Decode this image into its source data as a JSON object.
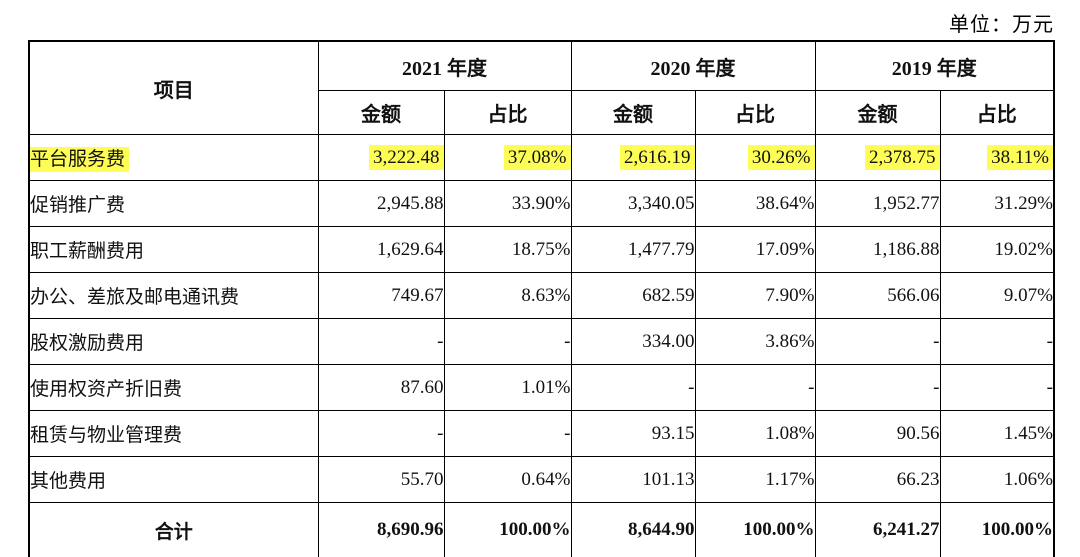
{
  "unit_label": "单位：万元",
  "table": {
    "item_header": "项目",
    "year_groups": [
      {
        "label": "2021 年度"
      },
      {
        "label": "2020 年度"
      },
      {
        "label": "2019 年度"
      }
    ],
    "sub_headers": {
      "amount": "金额",
      "ratio": "占比"
    },
    "rows": [
      {
        "item": "平台服务费",
        "highlight": true,
        "values": [
          "3,222.48",
          "37.08%",
          "2,616.19",
          "30.26%",
          "2,378.75",
          "38.11%"
        ]
      },
      {
        "item": "促销推广费",
        "highlight": false,
        "values": [
          "2,945.88",
          "33.90%",
          "3,340.05",
          "38.64%",
          "1,952.77",
          "31.29%"
        ]
      },
      {
        "item": "职工薪酬费用",
        "highlight": false,
        "values": [
          "1,629.64",
          "18.75%",
          "1,477.79",
          "17.09%",
          "1,186.88",
          "19.02%"
        ]
      },
      {
        "item": "办公、差旅及邮电通讯费",
        "highlight": false,
        "values": [
          "749.67",
          "8.63%",
          "682.59",
          "7.90%",
          "566.06",
          "9.07%"
        ]
      },
      {
        "item": "股权激励费用",
        "highlight": false,
        "values": [
          "-",
          "-",
          "334.00",
          "3.86%",
          "-",
          "-"
        ]
      },
      {
        "item": "使用权资产折旧费",
        "highlight": false,
        "values": [
          "87.60",
          "1.01%",
          "-",
          "-",
          "-",
          "-"
        ]
      },
      {
        "item": "租赁与物业管理费",
        "highlight": false,
        "values": [
          "-",
          "-",
          "93.15",
          "1.08%",
          "90.56",
          "1.45%"
        ]
      },
      {
        "item": "其他费用",
        "highlight": false,
        "values": [
          "55.70",
          "0.64%",
          "101.13",
          "1.17%",
          "66.23",
          "1.06%"
        ]
      }
    ],
    "total_row": {
      "item": "合计",
      "values": [
        "8,690.96",
        "100.00%",
        "8,644.90",
        "100.00%",
        "6,241.27",
        "100.00%"
      ]
    }
  },
  "colors": {
    "highlight": "#fdfd55",
    "border": "#000000",
    "text": "#111111",
    "background": "#ffffff"
  }
}
